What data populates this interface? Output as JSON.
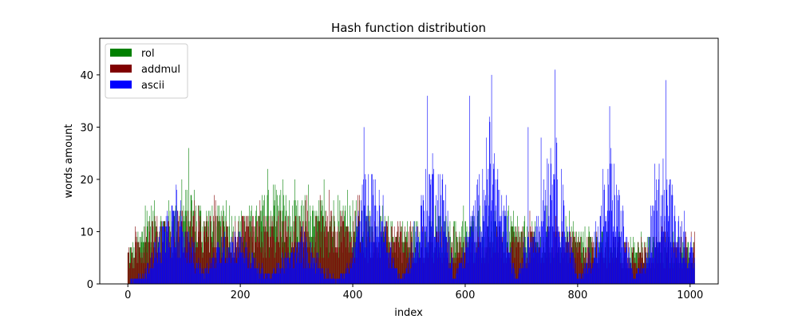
{
  "chart_data": {
    "type": "bar",
    "title": "Hash function distribution",
    "xlabel": "index",
    "ylabel": "words amount",
    "xlim": [
      -50,
      1050
    ],
    "ylim": [
      0,
      47
    ],
    "xticks": [
      0,
      200,
      400,
      600,
      800,
      1000
    ],
    "yticks": [
      0,
      10,
      20,
      30,
      40
    ],
    "legend_position": "top-left",
    "x_range": [
      0,
      1008
    ],
    "series": [
      {
        "name": "rol",
        "color": "#008000",
        "profile": [
          [
            0,
            7
          ],
          [
            20,
            9
          ],
          [
            35,
            15
          ],
          [
            60,
            14
          ],
          [
            90,
            15
          ],
          [
            110,
            19
          ],
          [
            130,
            15
          ],
          [
            160,
            14
          ],
          [
            200,
            13
          ],
          [
            230,
            14
          ],
          [
            260,
            19
          ],
          [
            290,
            15
          ],
          [
            330,
            14
          ],
          [
            360,
            16
          ],
          [
            400,
            15
          ],
          [
            420,
            14
          ],
          [
            450,
            12
          ],
          [
            500,
            11
          ],
          [
            560,
            12
          ],
          [
            600,
            11
          ],
          [
            630,
            14
          ],
          [
            660,
            13
          ],
          [
            700,
            11
          ],
          [
            760,
            10
          ],
          [
            800,
            10
          ],
          [
            860,
            9
          ],
          [
            900,
            8
          ],
          [
            960,
            9
          ],
          [
            1008,
            8
          ]
        ]
      },
      {
        "name": "addmul",
        "color": "#800000",
        "profile": [
          [
            0,
            6
          ],
          [
            20,
            9
          ],
          [
            40,
            13
          ],
          [
            60,
            12
          ],
          [
            90,
            13
          ],
          [
            110,
            14
          ],
          [
            130,
            12
          ],
          [
            160,
            12
          ],
          [
            200,
            12
          ],
          [
            230,
            12
          ],
          [
            260,
            13
          ],
          [
            290,
            12
          ],
          [
            330,
            12
          ],
          [
            360,
            13
          ],
          [
            400,
            13
          ],
          [
            420,
            12
          ],
          [
            450,
            11
          ],
          [
            500,
            11
          ],
          [
            560,
            10
          ],
          [
            600,
            10
          ],
          [
            630,
            10
          ],
          [
            660,
            10
          ],
          [
            700,
            10
          ],
          [
            760,
            10
          ],
          [
            800,
            9
          ],
          [
            860,
            9
          ],
          [
            900,
            8
          ],
          [
            960,
            9
          ],
          [
            1008,
            9
          ]
        ]
      },
      {
        "name": "ascii",
        "color": "#0000ff",
        "profile": [
          [
            0,
            0.5
          ],
          [
            30,
            2
          ],
          [
            55,
            10
          ],
          [
            80,
            15
          ],
          [
            105,
            10
          ],
          [
            135,
            3
          ],
          [
            175,
            10
          ],
          [
            200,
            10
          ],
          [
            230,
            4
          ],
          [
            255,
            2
          ],
          [
            285,
            6
          ],
          [
            315,
            9
          ],
          [
            345,
            4
          ],
          [
            370,
            1
          ],
          [
            395,
            4
          ],
          [
            420,
            20
          ],
          [
            440,
            20
          ],
          [
            460,
            10
          ],
          [
            485,
            1
          ],
          [
            500,
            5
          ],
          [
            540,
            25
          ],
          [
            560,
            20
          ],
          [
            580,
            1
          ],
          [
            600,
            8
          ],
          [
            645,
            30
          ],
          [
            670,
            14
          ],
          [
            690,
            1
          ],
          [
            715,
            10
          ],
          [
            755,
            30
          ],
          [
            780,
            14
          ],
          [
            800,
            1
          ],
          [
            830,
            8
          ],
          [
            860,
            25
          ],
          [
            880,
            14
          ],
          [
            900,
            1
          ],
          [
            920,
            5
          ],
          [
            950,
            25
          ],
          [
            975,
            15
          ],
          [
            1008,
            5
          ]
        ],
        "peaks": [
          [
            420,
            30
          ],
          [
            533,
            36
          ],
          [
            608,
            36
          ],
          [
            647,
            40
          ],
          [
            712,
            30
          ],
          [
            760,
            41
          ],
          [
            857,
            34
          ],
          [
            957,
            39
          ]
        ]
      }
    ]
  }
}
